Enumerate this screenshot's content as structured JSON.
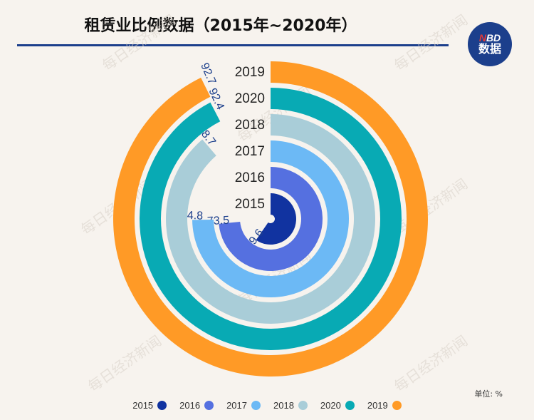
{
  "title": "租赁业比例数据（2015年~2020年）",
  "logo": {
    "line1_n": "N",
    "line1_rest": "BD",
    "line2": "数据"
  },
  "unit_label": "单位: %",
  "watermark_text": "每日经济新闻",
  "chart_data": {
    "type": "radial_bar",
    "series": [
      {
        "name": "2015",
        "value": 59.6,
        "color": "#1133a0"
      },
      {
        "name": "2016",
        "value": 73.5,
        "color": "#5570e0"
      },
      {
        "name": "2017",
        "value": 74.8,
        "color": "#6cb9f5"
      },
      {
        "name": "2018",
        "value": 88.7,
        "color": "#a9cdd8"
      },
      {
        "name": "2020",
        "value": 92.4,
        "color": "#08aab4"
      },
      {
        "name": "2019",
        "value": 92.7,
        "color": "#ff9a26"
      }
    ],
    "legend_position": "bottom"
  }
}
